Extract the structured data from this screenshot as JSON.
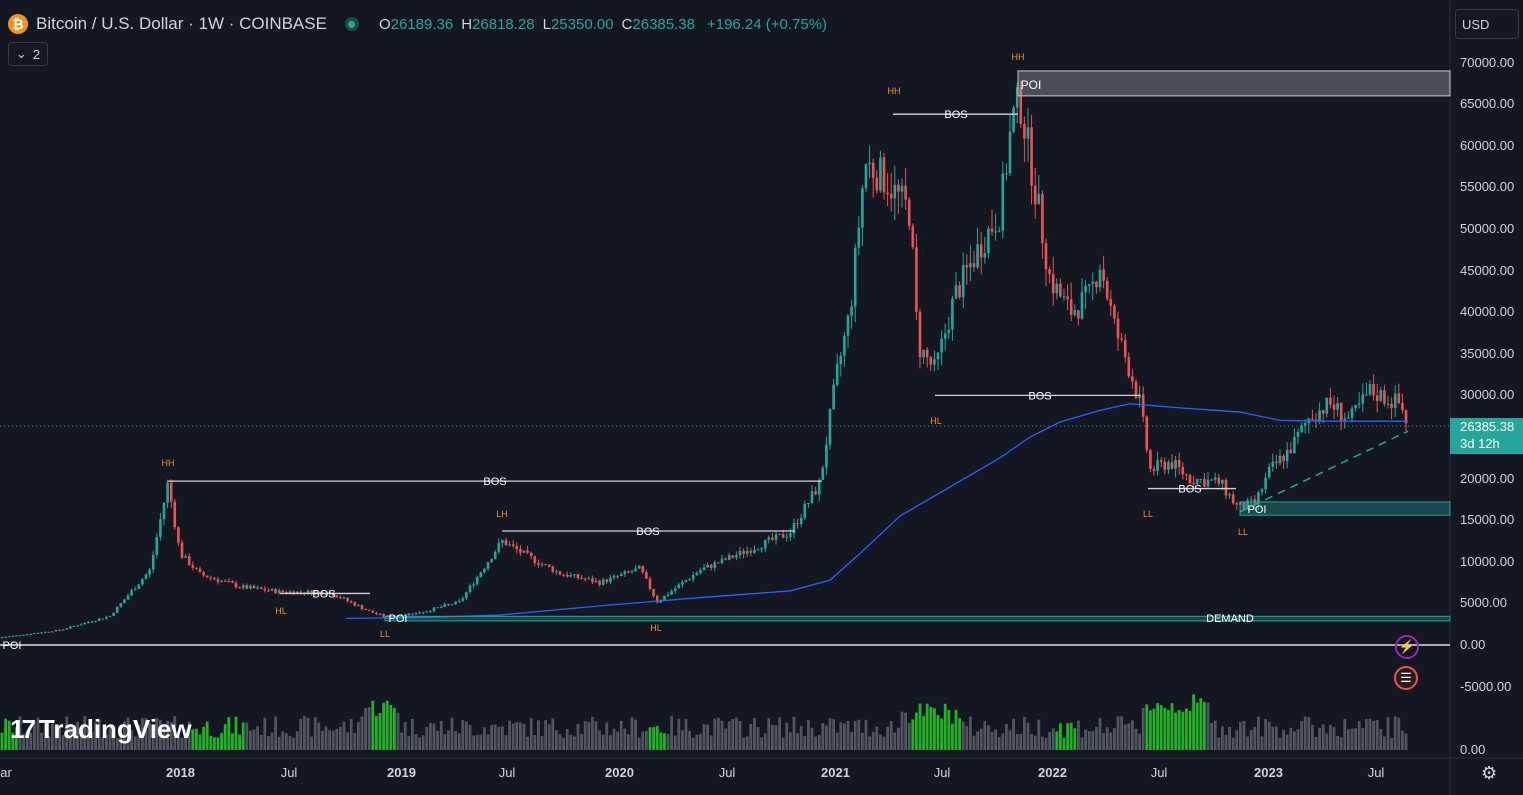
{
  "header": {
    "coin_glyph": "₿",
    "title": "Bitcoin / U.S. Dollar · 1W · COINBASE",
    "ohlc": {
      "o_key": "O",
      "o_val": "26189.36",
      "h_key": "H",
      "h_val": "26818.28",
      "l_key": "L",
      "l_val": "25350.00",
      "c_key": "C",
      "c_val": "26385.38",
      "change": "+196.24 (+0.75%)"
    },
    "indicator_count": "2",
    "currency": "USD"
  },
  "price_axis": {
    "labels": [
      "70000.00",
      "65000.00",
      "60000.00",
      "55000.00",
      "50000.00",
      "45000.00",
      "40000.00",
      "35000.00",
      "30000.00",
      "20000.00",
      "15000.00",
      "10000.00",
      "5000.00",
      "0.00",
      "-5000.00"
    ],
    "values": [
      70000,
      65000,
      60000,
      55000,
      50000,
      45000,
      40000,
      35000,
      30000,
      20000,
      15000,
      10000,
      5000,
      0,
      -5000
    ],
    "volume_zero_label": "0.00",
    "current_price": "26385.38",
    "countdown": "3d 12h"
  },
  "time_axis": {
    "labels": [
      "ar",
      "2018",
      "Jul",
      "2019",
      "Jul",
      "2020",
      "Jul",
      "2021",
      "Jul",
      "2022",
      "Jul",
      "2023",
      "Jul"
    ],
    "bold": [
      false,
      true,
      false,
      true,
      false,
      true,
      false,
      true,
      false,
      true,
      false,
      true,
      false
    ]
  },
  "brand": {
    "name": "TradingView"
  },
  "colors": {
    "up": "#26a69a",
    "down": "#ef5350",
    "ma": "#2962ff",
    "background": "#131722",
    "volume_hi": "#22d022",
    "volume": "#5d606b"
  },
  "annotations": {
    "hh": "HH",
    "hl": "HL",
    "ll": "LL",
    "lh": "LH",
    "bos": "BOS",
    "poi": "POI",
    "demand": "DEMAND"
  },
  "chart_data": {
    "type": "candlestick",
    "series_name": "Bitcoin / U.S. Dollar",
    "interval": "1W",
    "ylim": [
      -5000,
      70000
    ],
    "x": [
      "2017-04",
      "2017-07",
      "2017-10",
      "2017-12",
      "2018-02",
      "2018-05",
      "2018-08",
      "2018-11",
      "2019-01",
      "2019-04",
      "2019-06",
      "2019-09",
      "2019-12",
      "2020-03",
      "2020-06",
      "2020-09",
      "2020-12",
      "2021-01",
      "2021-04",
      "2021-06",
      "2021-09",
      "2021-11",
      "2022-01",
      "2022-04",
      "2022-06",
      "2022-09",
      "2022-11",
      "2023-01",
      "2023-04",
      "2023-06",
      "2023-08"
    ],
    "close_approx": [
      1100,
      2500,
      5500,
      19000,
      10000,
      8500,
      6500,
      4000,
      3600,
      5000,
      11500,
      8500,
      7200,
      5500,
      9300,
      10500,
      19000,
      32000,
      58000,
      35000,
      47000,
      63000,
      38000,
      40000,
      20000,
      19500,
      16500,
      23000,
      29000,
      30500,
      26385
    ],
    "moving_average": "long-period moving average (blue)",
    "levels": [
      {
        "label": "BOS",
        "value": 19700
      },
      {
        "label": "BOS",
        "value": 13700
      },
      {
        "label": "BOS",
        "value": 6200
      },
      {
        "label": "BOS",
        "value": 63800
      },
      {
        "label": "BOS",
        "value": 30000
      },
      {
        "label": "BOS",
        "value": 18800
      },
      {
        "label": "DEMAND",
        "value": 3200
      },
      {
        "label": "POI",
        "value": 0
      },
      {
        "label": "POI",
        "value": 67300
      },
      {
        "label": "POI",
        "value": 16300
      }
    ]
  }
}
